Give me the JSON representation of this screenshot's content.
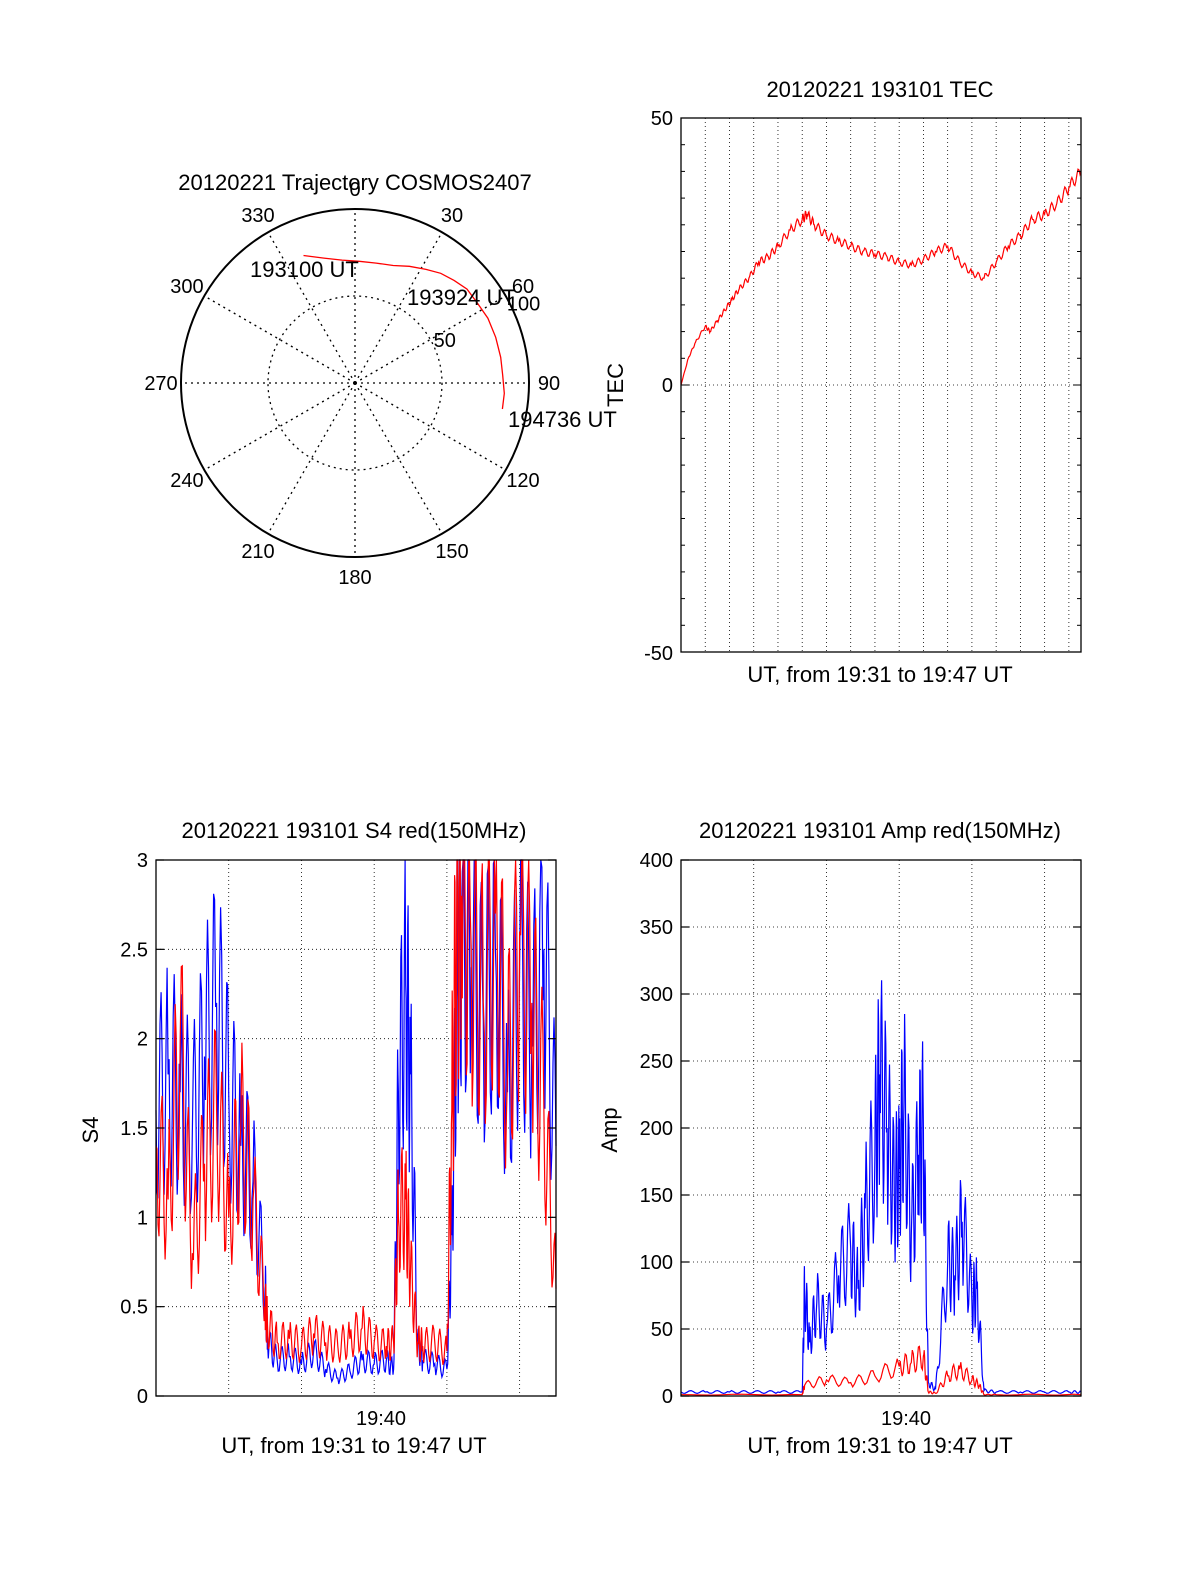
{
  "figure": {
    "colors": {
      "red": "#ff0000",
      "blue": "#0000ff",
      "axis": "#000000"
    }
  },
  "chart_data": [
    {
      "id": "trajectory",
      "type": "scatter",
      "subtype": "polar",
      "title": "20120221 Trajectory COSMOS2407",
      "azimuth_labels": [
        "0",
        "30",
        "60",
        "90",
        "120",
        "150",
        "180",
        "210",
        "240",
        "270",
        "300",
        "330"
      ],
      "radius_labels": [
        "50",
        "100"
      ],
      "r_max": 100,
      "grid": true,
      "series": [
        {
          "color": "red",
          "points": [
            {
              "az": 338,
              "r": 79
            },
            {
              "az": 346,
              "r": 74
            },
            {
              "az": 354,
              "r": 71
            },
            {
              "az": 2,
              "r": 70
            },
            {
              "az": 10,
              "r": 70
            },
            {
              "az": 18,
              "r": 71
            },
            {
              "az": 25,
              "r": 74
            },
            {
              "az": 32,
              "r": 77
            },
            {
              "az": 38,
              "r": 80
            },
            {
              "az": 44,
              "r": 82
            },
            {
              "az": 50,
              "r": 84
            },
            {
              "az": 57,
              "r": 84
            },
            {
              "az": 64,
              "r": 85
            },
            {
              "az": 72,
              "r": 85
            },
            {
              "az": 80,
              "r": 85
            },
            {
              "az": 87,
              "r": 85
            },
            {
              "az": 94,
              "r": 86
            },
            {
              "az": 100,
              "r": 86
            }
          ]
        }
      ],
      "annotations": [
        "193100 UT",
        "193924 UT",
        "194736 UT"
      ]
    },
    {
      "id": "tec",
      "type": "line",
      "title": "20120221 193101 TEC",
      "xlabel": "UT, from 19:31 to 19:47 UT",
      "ylabel": "TEC",
      "xlim": [
        0,
        16.5
      ],
      "ylim": [
        -50,
        50
      ],
      "yticks": [
        "50",
        "0",
        "-50"
      ],
      "grid": true,
      "series": [
        {
          "color": "red",
          "x": [
            0,
            0.3,
            0.6,
            1.0,
            1.2,
            1.5,
            1.8,
            2.1,
            2.4,
            2.8,
            3.2,
            3.6,
            4.0,
            4.5,
            5.0,
            5.2,
            5.5,
            6.0,
            6.5,
            7.0,
            7.5,
            8.0,
            8.5,
            9.0,
            9.5,
            10.0,
            10.5,
            11.0,
            11.5,
            12.0,
            12.5,
            13.0,
            13.5,
            14.0,
            14.5,
            15.0,
            15.5,
            16.0,
            16.5
          ],
          "y": [
            0,
            5,
            8,
            11,
            10,
            12,
            14,
            16,
            18,
            20,
            23,
            24,
            26,
            29,
            31,
            32,
            30,
            28,
            27,
            26,
            25,
            24.5,
            24,
            23,
            22.5,
            23.5,
            25,
            26,
            23,
            21,
            20,
            23,
            26,
            28,
            31,
            32,
            34,
            37,
            40
          ]
        }
      ]
    },
    {
      "id": "s4",
      "type": "line",
      "title": "20120221 193101 S4 red(150MHz)",
      "xlabel": "UT, from 19:31 to 19:47 UT",
      "ylabel": "S4",
      "xlim": [
        0,
        16.5
      ],
      "ylim": [
        0,
        3
      ],
      "xticks": [
        {
          "x": 9,
          "label": "19:40"
        }
      ],
      "yticks": [
        "0",
        "0.5",
        "1",
        "1.5",
        "2",
        "2.5",
        "3"
      ],
      "grid": true,
      "series": [
        {
          "color": "blue",
          "x": [
            0,
            0.5,
            1.0,
            1.5,
            2.0,
            2.5,
            3.0,
            3.5,
            4.0,
            4.5,
            4.6,
            5.0,
            5.5,
            6.0,
            6.5,
            7.0,
            7.5,
            8.0,
            8.5,
            9.0,
            9.5,
            9.8,
            10.0,
            10.3,
            10.5,
            10.8,
            11.0,
            11.5,
            12.0,
            12.2,
            12.4,
            12.6,
            13.0,
            13.5,
            14.0,
            14.5,
            15.0,
            15.5,
            16.0,
            16.5
          ],
          "y": [
            1.6,
            1.8,
            1.7,
            1.5,
            1.9,
            2.2,
            1.7,
            1.4,
            1.2,
            0.6,
            0.3,
            0.2,
            0.22,
            0.18,
            0.25,
            0.15,
            0.1,
            0.14,
            0.2,
            0.18,
            0.2,
            0.15,
            1.7,
            2.3,
            1.8,
            0.3,
            0.2,
            0.18,
            0.15,
            0.9,
            2.3,
            2.6,
            2.4,
            2.1,
            2.5,
            1.7,
            2.4,
            2.0,
            2.5,
            1.4
          ]
        },
        {
          "color": "red",
          "x": [
            0,
            0.5,
            1.0,
            1.5,
            2.0,
            2.5,
            3.0,
            3.5,
            4.0,
            4.5,
            4.6,
            5.0,
            5.5,
            6.0,
            6.5,
            7.0,
            7.5,
            8.0,
            8.5,
            9.0,
            9.5,
            9.8,
            10.0,
            10.3,
            10.5,
            10.8,
            11.0,
            11.5,
            12.0,
            12.2,
            12.4,
            12.6,
            13.0,
            13.5,
            14.0,
            14.5,
            15.0,
            15.5,
            16.0,
            16.5
          ],
          "y": [
            1.4,
            1.1,
            2.0,
            0.8,
            1.3,
            1.6,
            1.0,
            1.5,
            1.1,
            0.5,
            0.4,
            0.3,
            0.32,
            0.28,
            0.35,
            0.3,
            0.28,
            0.32,
            0.38,
            0.3,
            0.28,
            0.3,
            1.0,
            1.1,
            0.7,
            0.3,
            0.28,
            0.3,
            0.25,
            1.6,
            2.6,
            2.8,
            2.5,
            2.2,
            2.7,
            1.8,
            2.6,
            2.2,
            1.6,
            0.6
          ]
        }
      ]
    },
    {
      "id": "amp",
      "type": "line",
      "title": "20120221 193101 Amp red(150MHz)",
      "xlabel": "UT, from 19:31 to 19:47 UT",
      "ylabel": "Amp",
      "xlim": [
        0,
        16.5
      ],
      "ylim": [
        0,
        400
      ],
      "xticks": [
        {
          "x": 9,
          "label": "19:40"
        }
      ],
      "yticks": [
        "0",
        "50",
        "100",
        "150",
        "200",
        "250",
        "300",
        "350",
        "400"
      ],
      "grid": true,
      "series": [
        {
          "color": "blue",
          "x": [
            0,
            1,
            2,
            3,
            4,
            5,
            5.1,
            5.3,
            5.6,
            6.0,
            6.5,
            7.0,
            7.3,
            7.6,
            8.0,
            8.2,
            8.5,
            8.8,
            9.0,
            9.2,
            9.5,
            9.8,
            10.0,
            10.2,
            10.5,
            11.0,
            11.3,
            11.6,
            12.0,
            12.2,
            12.5,
            13,
            14,
            15,
            16,
            16.5
          ],
          "y": [
            3,
            3,
            3,
            3,
            3,
            3,
            80,
            40,
            70,
            50,
            90,
            110,
            80,
            140,
            180,
            240,
            200,
            150,
            170,
            220,
            120,
            180,
            200,
            10,
            5,
            100,
            90,
            130,
            70,
            80,
            4,
            3,
            3,
            3,
            3,
            3
          ]
        },
        {
          "color": "red",
          "x": [
            0,
            5,
            5.1,
            6,
            7,
            8,
            9,
            9.5,
            10,
            10.2,
            10.5,
            11,
            11.5,
            12,
            12.3,
            12.5,
            13,
            16.5
          ],
          "y": [
            1,
            1,
            8,
            12,
            10,
            15,
            22,
            25,
            30,
            3,
            2,
            15,
            20,
            12,
            8,
            1,
            1,
            1
          ]
        }
      ]
    }
  ]
}
